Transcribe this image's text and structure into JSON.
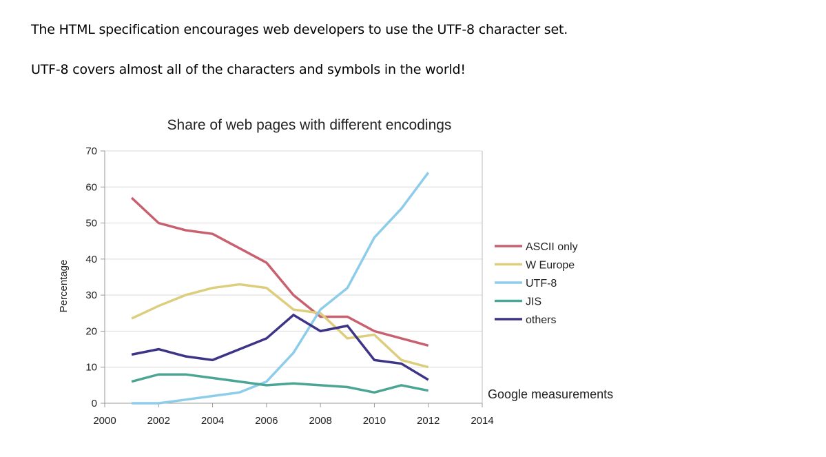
{
  "intro": {
    "line1": "The HTML specification encourages web developers to use the UTF-8 character set.",
    "line2": "UTF-8 covers almost all of the characters and symbols in the world!"
  },
  "chart_data": {
    "type": "line",
    "title": "Share of web pages with different encodings",
    "xlabel": "",
    "ylabel": "Percentage",
    "xlim": [
      2000,
      2014
    ],
    "ylim": [
      0,
      70
    ],
    "xticks": [
      2000,
      2002,
      2004,
      2006,
      2008,
      2010,
      2012,
      2014
    ],
    "yticks": [
      0,
      10,
      20,
      30,
      40,
      50,
      60,
      70
    ],
    "grid": true,
    "legend_position": "right",
    "annotation": "Google measurements",
    "x": [
      2001,
      2002,
      2003,
      2004,
      2005,
      2006,
      2007,
      2008,
      2009,
      2010,
      2011,
      2012
    ],
    "series": [
      {
        "name": "ASCII only",
        "color": "#c9606f",
        "values": [
          57,
          50,
          48,
          47,
          43,
          39,
          30,
          24,
          24,
          20,
          18,
          16
        ]
      },
      {
        "name": "W Europe",
        "color": "#ddce7e",
        "values": [
          23.5,
          27,
          30,
          32,
          33,
          32,
          26,
          25,
          18,
          19,
          12,
          10
        ]
      },
      {
        "name": "UTF-8",
        "color": "#8dcdeb",
        "values": [
          0,
          0,
          1,
          2,
          3,
          6,
          14,
          26,
          32,
          46,
          54,
          64
        ]
      },
      {
        "name": "JIS",
        "color": "#4ba594",
        "values": [
          6,
          8,
          8,
          7,
          6,
          5,
          5.5,
          5,
          4.5,
          3,
          5,
          3.5
        ]
      },
      {
        "name": "others",
        "color": "#3d3487",
        "values": [
          13.5,
          15,
          13,
          12,
          15,
          18,
          24.5,
          20,
          21.5,
          12,
          11,
          6.5
        ]
      }
    ]
  }
}
